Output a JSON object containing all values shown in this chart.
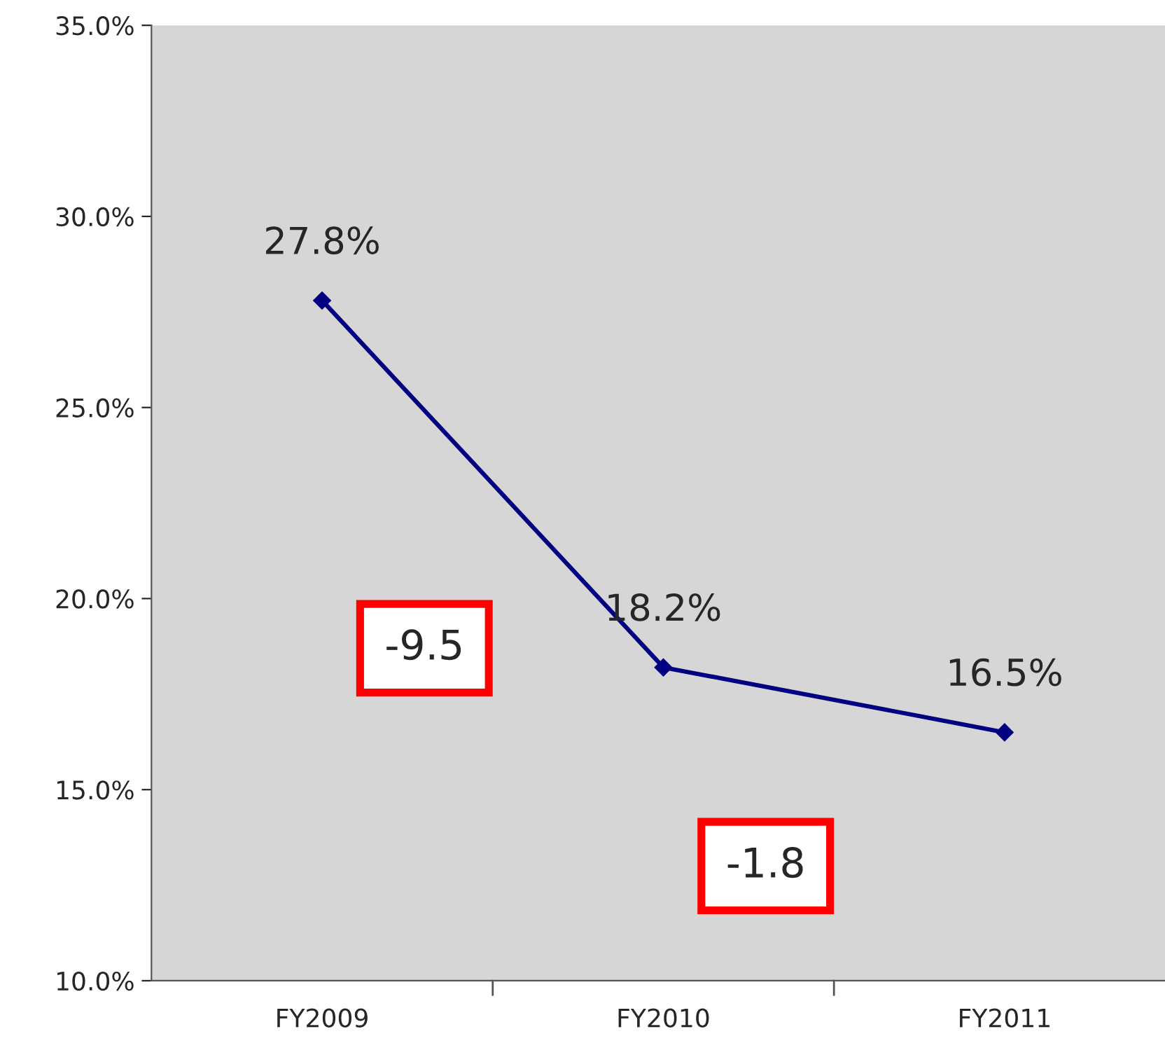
{
  "chart_data": {
    "type": "line",
    "categories": [
      "FY2009",
      "FY2010",
      "FY2011"
    ],
    "series": [
      {
        "color": "#000080",
        "values": [
          27.8,
          18.2,
          16.5
        ],
        "value_labels": [
          "27.8%",
          "18.2%",
          "16.5%"
        ]
      }
    ],
    "ylim": [
      10,
      35
    ],
    "yticks": [
      {
        "value": 10,
        "label": "10.0%"
      },
      {
        "value": 15,
        "label": "15.0%"
      },
      {
        "value": 20,
        "label": "20.0%"
      },
      {
        "value": 25,
        "label": "25.0%"
      },
      {
        "value": 30,
        "label": "30.0%"
      },
      {
        "value": 35,
        "label": "35.0%"
      }
    ],
    "annotations": [
      "-9.5",
      "-1.8"
    ],
    "marker": "diamond",
    "line_style": "solid",
    "grid": false,
    "legend": false
  }
}
